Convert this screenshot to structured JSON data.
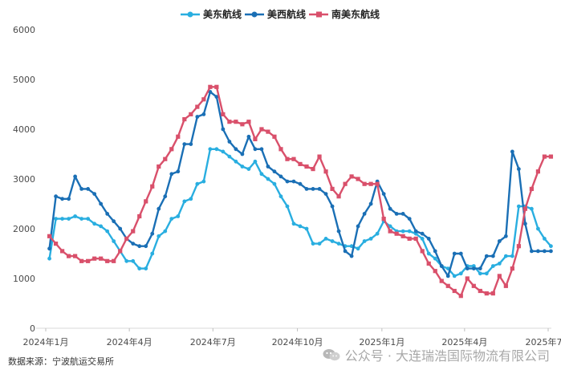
{
  "chart_data": {
    "type": "line",
    "title": "",
    "xlabel": "",
    "ylabel": "",
    "ylim": [
      0,
      6000
    ],
    "yticks": [
      0,
      1000,
      2000,
      3000,
      4000,
      5000,
      6000
    ],
    "xticks": [
      "2024年1月",
      "2024年4月",
      "2024年7月",
      "2024年10月",
      "2025年1月",
      "2025年4月",
      "2025年7月"
    ],
    "legend_position": "top-center",
    "grid": false,
    "series": [
      {
        "name": "美东航线",
        "color": "#29aee0",
        "marker": "circle",
        "x": [
          "2024-01-05",
          "2024-01-12",
          "2024-01-19",
          "2024-01-26",
          "2024-02-02",
          "2024-02-09",
          "2024-02-16",
          "2024-02-23",
          "2024-03-01",
          "2024-03-08",
          "2024-03-15",
          "2024-03-22",
          "2024-03-29",
          "2024-04-05",
          "2024-04-12",
          "2024-04-19",
          "2024-04-26",
          "2024-05-03",
          "2024-05-10",
          "2024-05-17",
          "2024-05-24",
          "2024-05-31",
          "2024-06-07",
          "2024-06-14",
          "2024-06-21",
          "2024-06-28",
          "2024-07-05",
          "2024-07-12",
          "2024-07-19",
          "2024-07-26",
          "2024-08-02",
          "2024-08-09",
          "2024-08-16",
          "2024-08-23",
          "2024-08-30",
          "2024-09-06",
          "2024-09-13",
          "2024-09-20",
          "2024-09-27",
          "2024-10-04",
          "2024-10-11",
          "2024-10-18",
          "2024-10-25",
          "2024-11-01",
          "2024-11-08",
          "2024-11-15",
          "2024-11-22",
          "2024-11-29",
          "2024-12-06",
          "2024-12-13",
          "2024-12-20",
          "2024-12-27",
          "2025-01-03",
          "2025-01-10",
          "2025-01-17",
          "2025-01-24",
          "2025-01-31",
          "2025-02-07",
          "2025-02-14",
          "2025-02-21",
          "2025-02-28",
          "2025-03-07",
          "2025-03-14",
          "2025-03-21",
          "2025-03-28",
          "2025-04-04",
          "2025-04-11",
          "2025-04-18",
          "2025-04-25",
          "2025-05-02",
          "2025-05-09",
          "2025-05-16",
          "2025-05-23",
          "2025-05-30",
          "2025-06-06",
          "2025-06-13",
          "2025-06-20",
          "2025-06-27",
          "2025-07-04"
        ],
        "values": [
          1400,
          2200,
          2200,
          2200,
          2250,
          2200,
          2200,
          2100,
          2050,
          1950,
          1750,
          1550,
          1350,
          1350,
          1200,
          1200,
          1500,
          1850,
          1950,
          2200,
          2250,
          2550,
          2600,
          2900,
          2950,
          3600,
          3600,
          3550,
          3450,
          3350,
          3250,
          3200,
          3350,
          3100,
          3000,
          2900,
          2650,
          2450,
          2100,
          2050,
          2000,
          1700,
          1700,
          1800,
          1750,
          1700,
          1650,
          1650,
          1600,
          1750,
          1800,
          1900,
          2150,
          2050,
          1950,
          1950,
          1950,
          1900,
          1800,
          1500,
          1400,
          1250,
          1200,
          1050,
          1100,
          1250,
          1250,
          1100,
          1100,
          1250,
          1300,
          1450,
          1450,
          2450,
          2450,
          2400,
          2000,
          1800,
          1650
        ]
      },
      {
        "name": "美西航线",
        "color": "#1a6fb5",
        "marker": "circle",
        "x": [
          "2024-01-05",
          "2024-01-12",
          "2024-01-19",
          "2024-01-26",
          "2024-02-02",
          "2024-02-09",
          "2024-02-16",
          "2024-02-23",
          "2024-03-01",
          "2024-03-08",
          "2024-03-15",
          "2024-03-22",
          "2024-03-29",
          "2024-04-05",
          "2024-04-12",
          "2024-04-19",
          "2024-04-26",
          "2024-05-03",
          "2024-05-10",
          "2024-05-17",
          "2024-05-24",
          "2024-05-31",
          "2024-06-07",
          "2024-06-14",
          "2024-06-21",
          "2024-06-28",
          "2024-07-05",
          "2024-07-12",
          "2024-07-19",
          "2024-07-26",
          "2024-08-02",
          "2024-08-09",
          "2024-08-16",
          "2024-08-23",
          "2024-08-30",
          "2024-09-06",
          "2024-09-13",
          "2024-09-20",
          "2024-09-27",
          "2024-10-04",
          "2024-10-11",
          "2024-10-18",
          "2024-10-25",
          "2024-11-01",
          "2024-11-08",
          "2024-11-15",
          "2024-11-22",
          "2024-11-29",
          "2024-12-06",
          "2024-12-13",
          "2024-12-20",
          "2024-12-27",
          "2025-01-03",
          "2025-01-10",
          "2025-01-17",
          "2025-01-24",
          "2025-01-31",
          "2025-02-07",
          "2025-02-14",
          "2025-02-21",
          "2025-02-28",
          "2025-03-07",
          "2025-03-14",
          "2025-03-21",
          "2025-03-28",
          "2025-04-04",
          "2025-04-11",
          "2025-04-18",
          "2025-04-25",
          "2025-05-02",
          "2025-05-09",
          "2025-05-16",
          "2025-05-23",
          "2025-05-30",
          "2025-06-06",
          "2025-06-13",
          "2025-06-20",
          "2025-06-27",
          "2025-07-04"
        ],
        "values": [
          1600,
          2650,
          2600,
          2600,
          3050,
          2800,
          2800,
          2700,
          2500,
          2300,
          2150,
          2000,
          1800,
          1700,
          1650,
          1650,
          1900,
          2400,
          2650,
          3100,
          3150,
          3700,
          3700,
          4250,
          4300,
          4750,
          4650,
          4000,
          3750,
          3600,
          3500,
          3850,
          3600,
          3600,
          3250,
          3150,
          3050,
          2950,
          2950,
          2900,
          2800,
          2800,
          2800,
          2700,
          2450,
          1950,
          1550,
          1450,
          2050,
          2300,
          2500,
          2950,
          2700,
          2400,
          2300,
          2300,
          2200,
          1950,
          1900,
          1800,
          1550,
          1250,
          1050,
          1500,
          1500,
          1200,
          1200,
          1200,
          1450,
          1450,
          1750,
          1850,
          3550,
          3200,
          2100,
          1550,
          1550,
          1550,
          1550
        ]
      },
      {
        "name": "南美东航线",
        "color": "#d9506b",
        "marker": "square",
        "x": [
          "2024-01-05",
          "2024-01-12",
          "2024-01-19",
          "2024-01-26",
          "2024-02-02",
          "2024-02-09",
          "2024-02-16",
          "2024-02-23",
          "2024-03-01",
          "2024-03-08",
          "2024-03-15",
          "2024-03-22",
          "2024-03-29",
          "2024-04-05",
          "2024-04-12",
          "2024-04-19",
          "2024-04-26",
          "2024-05-03",
          "2024-05-10",
          "2024-05-17",
          "2024-05-24",
          "2024-05-31",
          "2024-06-07",
          "2024-06-14",
          "2024-06-21",
          "2024-06-28",
          "2024-07-05",
          "2024-07-12",
          "2024-07-19",
          "2024-07-26",
          "2024-08-02",
          "2024-08-09",
          "2024-08-16",
          "2024-08-23",
          "2024-08-30",
          "2024-09-06",
          "2024-09-13",
          "2024-09-20",
          "2024-09-27",
          "2024-10-04",
          "2024-10-11",
          "2024-10-18",
          "2024-10-25",
          "2024-11-01",
          "2024-11-08",
          "2024-11-15",
          "2024-11-22",
          "2024-11-29",
          "2024-12-06",
          "2024-12-13",
          "2024-12-20",
          "2024-12-27",
          "2025-01-03",
          "2025-01-10",
          "2025-01-17",
          "2025-01-24",
          "2025-01-31",
          "2025-02-07",
          "2025-02-14",
          "2025-02-21",
          "2025-02-28",
          "2025-03-07",
          "2025-03-14",
          "2025-03-21",
          "2025-03-28",
          "2025-04-04",
          "2025-04-11",
          "2025-04-18",
          "2025-04-25",
          "2025-05-02",
          "2025-05-09",
          "2025-05-16",
          "2025-05-23",
          "2025-05-30",
          "2025-06-06",
          "2025-06-13",
          "2025-06-20",
          "2025-06-27",
          "2025-07-04"
        ],
        "values": [
          1850,
          1700,
          1550,
          1450,
          1450,
          1350,
          1350,
          1400,
          1400,
          1350,
          1350,
          1550,
          1800,
          1950,
          2250,
          2550,
          2850,
          3250,
          3400,
          3600,
          3850,
          4200,
          4300,
          4450,
          4600,
          4850,
          4850,
          4300,
          4150,
          4150,
          4100,
          4150,
          3800,
          4000,
          3950,
          3850,
          3600,
          3400,
          3400,
          3300,
          3250,
          3200,
          3450,
          3150,
          2800,
          2650,
          2900,
          3050,
          3000,
          2900,
          2900,
          2900,
          2200,
          1950,
          1900,
          1850,
          1800,
          1800,
          1550,
          1300,
          1150,
          950,
          850,
          750,
          650,
          1000,
          850,
          750,
          700,
          700,
          1050,
          850,
          1200,
          1650,
          2400,
          2800,
          3150,
          3450,
          3450
        ]
      }
    ]
  },
  "footer": {
    "source": "数据来源：宁波航运交易所"
  },
  "watermark": {
    "text": "公众号 · 大连瑞浩国际物流有限公司"
  }
}
